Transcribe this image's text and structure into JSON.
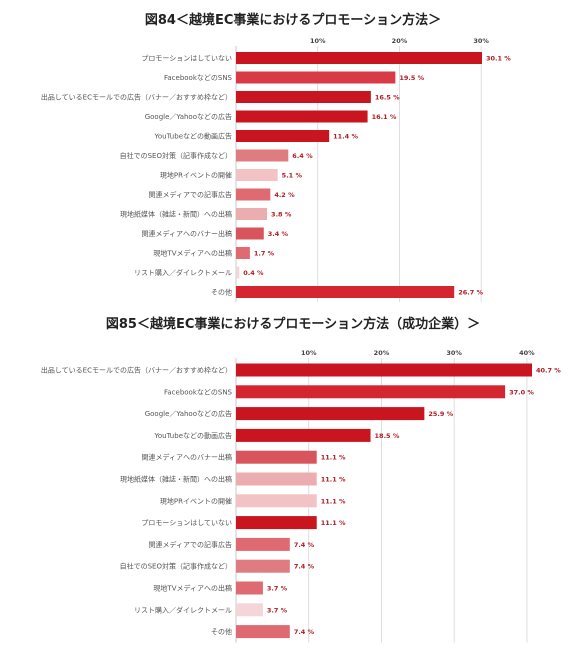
{
  "chart_data": [
    {
      "type": "bar",
      "orientation": "horizontal",
      "title": "図84＜越境EC事業におけるプロモーション方法＞",
      "categories": [
        "プロモーションはしていない",
        "FacebookなどのSNS",
        "出品しているECモールでの広告（バナー／おすすめ枠など）",
        "Google／Yahooなどの広告",
        "YouTubeなどの動画広告",
        "自社でのSEO対策（記事作成など）",
        "現地PRイベントの開催",
        "関連メディアでの記事広告",
        "現地紙媒体（雑誌・新聞）への出稿",
        "関連メディアへのバナー出稿",
        "現地TVメディアへの出稿",
        "リスト購入／ダイレクトメール",
        "その他"
      ],
      "values": [
        30.1,
        19.5,
        16.5,
        16.1,
        11.4,
        6.4,
        5.1,
        4.2,
        3.8,
        3.4,
        1.7,
        0.4,
        26.7
      ],
      "value_labels": [
        "30.1 %",
        "19.5 %",
        "16.5 %",
        "16.1 %",
        "11.4 %",
        "6.4 %",
        "5.1 %",
        "4.2 %",
        "3.8 %",
        "3.4 %",
        "1.7 %",
        "0.4 %",
        "26.7 %"
      ],
      "colors": [
        "#c8151f",
        "#d83a46",
        "#c8151f",
        "#c8151f",
        "#c8151f",
        "#df7c82",
        "#f3c2c5",
        "#df6a72",
        "#ecadb1",
        "#d9555d",
        "#df6a72",
        "#f5d6d8",
        "#d42631"
      ],
      "xticks": [
        "10%",
        "20%",
        "30%"
      ],
      "xtick_values": [
        10,
        20,
        30
      ],
      "xlim": [
        0,
        30.1
      ],
      "grid": true
    },
    {
      "type": "bar",
      "orientation": "horizontal",
      "title": "図85＜越境EC事業におけるプロモーション方法（成功企業）＞",
      "categories": [
        "出品しているECモールでの広告（バナー／おすすめ枠など）",
        "FacebookなどのSNS",
        "Google／Yahooなどの広告",
        "YouTubeなどの動画広告",
        "関連メディアへのバナー出稿",
        "現地紙媒体（雑誌・新聞）への出稿",
        "現地PRイベントの開催",
        "プロモーションはしていない",
        "関連メディアでの記事広告",
        "自社でのSEO対策（記事作成など）",
        "現地TVメディアへの出稿",
        "リスト購入／ダイレクトメール",
        "その他"
      ],
      "values": [
        40.7,
        37.0,
        25.9,
        18.5,
        11.1,
        11.1,
        11.1,
        11.1,
        7.4,
        7.4,
        3.7,
        3.7,
        7.4
      ],
      "value_labels": [
        "40.7 %",
        "37.0 %",
        "25.9 %",
        "18.5 %",
        "11.1 %",
        "11.1 %",
        "11.1 %",
        "11.1 %",
        "7.4 %",
        "7.4 %",
        "3.7 %",
        "3.7 %",
        "7.4 %"
      ],
      "colors": [
        "#c8151f",
        "#d42631",
        "#c8151f",
        "#c8151f",
        "#d9555d",
        "#ecadb1",
        "#f3c2c5",
        "#c8151f",
        "#df6a72",
        "#df7c82",
        "#df6a72",
        "#f5d6d8",
        "#df6a72"
      ],
      "xticks": [
        "10%",
        "20%",
        "30%",
        "40%"
      ],
      "xtick_values": [
        10,
        20,
        30,
        40
      ],
      "xlim": [
        0,
        40.7
      ],
      "grid": true
    }
  ]
}
